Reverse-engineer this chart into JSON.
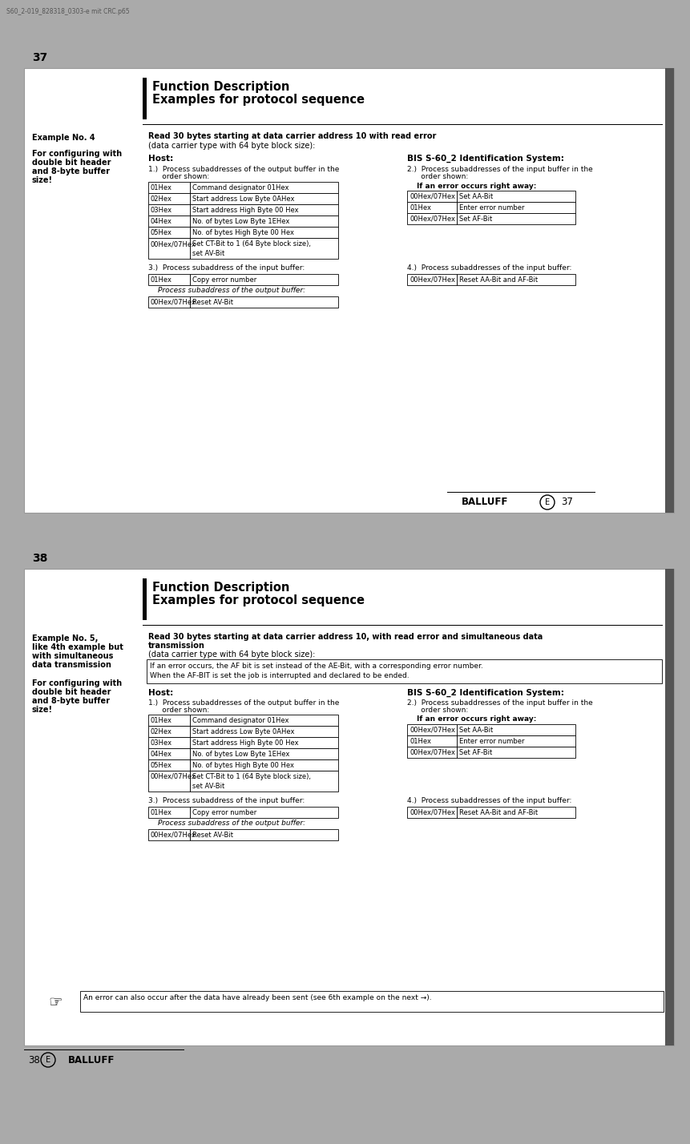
{
  "page_bg": "#aaaaaa",
  "file_label": "S60_2-019_828318_0303-e mit CRC.p65",
  "page1": {
    "page_num": "37",
    "title_line1": "Function Description",
    "title_line2": "Examples for protocol sequence",
    "example_label": "Example No. 4",
    "config_label": "For configuring with\ndouble bit header\nand 8-byte buffer\nsize!",
    "main_title": "Read 30 bytes starting at data carrier address 10 with read error",
    "main_subtitle": "(data carrier type with 64 byte block size):",
    "host_label": "Host:",
    "bis_label": "BIS S-60_2 Identification System:",
    "step1_text1": "1.)  Process subaddresses of the output buffer in the",
    "step1_text2": "      order shown:",
    "step2_text1": "2.)  Process subaddresses of the input buffer in the",
    "step2_text2": "      order shown:",
    "step3_text": "3.)  Process subaddress of the input buffer:",
    "step4_text": "4.)  Process subaddresses of the input buffer:",
    "error_label": "If an error occurs right away:",
    "host_table": [
      [
        "01Hex",
        "Command designator 01Hex"
      ],
      [
        "02Hex",
        "Start address Low Byte 0AHex"
      ],
      [
        "03Hex",
        "Start address High Byte 00 Hex"
      ],
      [
        "04Hex",
        "No. of bytes Low Byte 1EHex"
      ],
      [
        "05Hex",
        "No. of bytes High Byte 00 Hex"
      ],
      [
        "00Hex/07Hex",
        "Set CT-Bit to 1 (64 Byte block size),\nset AV-Bit"
      ]
    ],
    "bis_error_table": [
      [
        "00Hex/07Hex",
        "Set AA-Bit"
      ],
      [
        "01Hex",
        "Enter error number"
      ],
      [
        "00Hex/07Hex",
        "Set AF-Bit"
      ]
    ],
    "step3_table": [
      [
        "01Hex",
        "Copy error number"
      ]
    ],
    "step3_sub_label": "      Process subaddress of the output buffer:",
    "step3_sub_table": [
      [
        "00Hex/07Hex",
        "Reset AV-Bit"
      ]
    ],
    "step4_table": [
      [
        "00Hex/07Hex",
        "Reset AA-Bit and AF-Bit"
      ]
    ],
    "footer_balluff": "BALLUFF",
    "footer_e": "E",
    "footer_num": "37"
  },
  "page2": {
    "page_num": "38",
    "title_line1": "Function Description",
    "title_line2": "Examples for protocol sequence",
    "example_label_lines": [
      "Example No. 5,",
      "like 4th example but",
      "with simultaneous",
      "data transmission"
    ],
    "config_label": "For configuring with\ndouble bit header\nand 8-byte buffer\nsize!",
    "main_title1": "Read 30 bytes starting at data carrier address 10, with read error and simultaneous data",
    "main_title2": "transmission",
    "main_subtitle": "(data carrier type with 64 byte block size):",
    "info_box_lines": [
      "If an error occurs, the AF bit is set instead of the AE-Bit, with a corresponding error number.",
      "When the AF-BIT is set the job is interrupted and declared to be ended."
    ],
    "host_label": "Host:",
    "bis_label": "BIS S-60_2 Identification System:",
    "step1_text1": "1.)  Process subaddresses of the output buffer in the",
    "step1_text2": "      order shown:",
    "step2_text1": "2.)  Process subaddresses of the input buffer in the",
    "step2_text2": "      order shown:",
    "step3_text": "3.)  Process subaddress of the input buffer:",
    "step4_text": "4.)  Process subaddresses of the input buffer:",
    "error_label": "If an error occurs right away:",
    "host_table": [
      [
        "01Hex",
        "Command designator 01Hex"
      ],
      [
        "02Hex",
        "Start address Low Byte 0AHex"
      ],
      [
        "03Hex",
        "Start address High Byte 00 Hex"
      ],
      [
        "04Hex",
        "No. of bytes Low Byte 1EHex"
      ],
      [
        "05Hex",
        "No. of bytes High Byte 00 Hex"
      ],
      [
        "00Hex/07Hex",
        "Set CT-Bit to 1 (64 Byte block size),\nset AV-Bit"
      ]
    ],
    "bis_error_table": [
      [
        "00Hex/07Hex",
        "Set AA-Bit"
      ],
      [
        "01Hex",
        "Enter error number"
      ],
      [
        "00Hex/07Hex",
        "Set AF-Bit"
      ]
    ],
    "step3_table": [
      [
        "01Hex",
        "Copy error number"
      ]
    ],
    "step3_sub_label": "      Process subaddress of the output buffer:",
    "step3_sub_table": [
      [
        "00Hex/07Hex",
        "Reset AV-Bit"
      ]
    ],
    "step4_table": [
      [
        "00Hex/07Hex",
        "Reset AA-Bit and AF-Bit"
      ]
    ],
    "note_text": "An error can also occur after the data have already been sent (see 6th example on the next →).",
    "footer_num": "38",
    "footer_e": "E",
    "footer_balluff": "BALLUFF"
  }
}
